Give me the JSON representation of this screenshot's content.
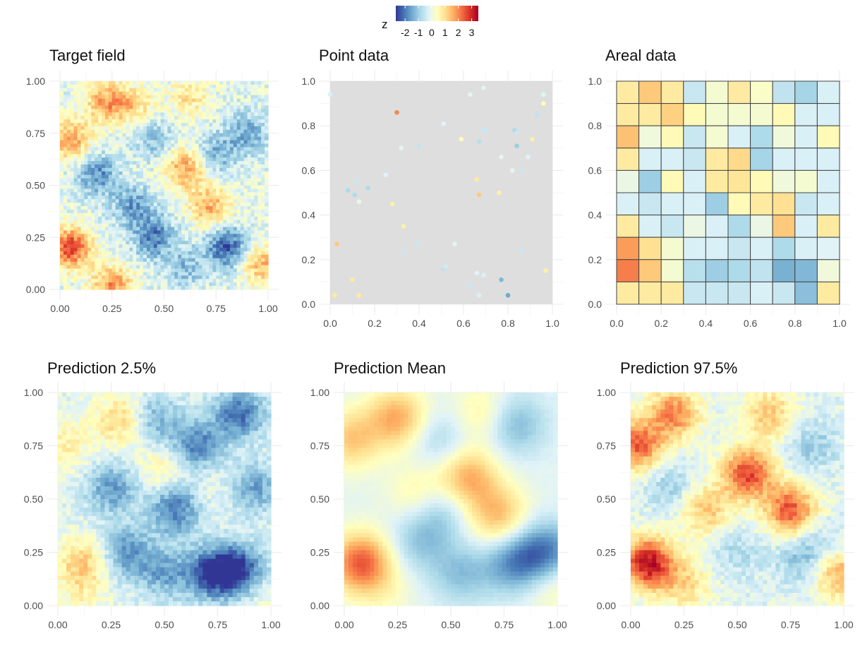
{
  "legend": {
    "title": "z",
    "tick_labels": [
      "-2",
      "-1",
      "0",
      "1",
      "2",
      "3"
    ],
    "tick_values": [
      -2,
      -1,
      0,
      1,
      2,
      3
    ],
    "range": [
      -2.7,
      3.5
    ],
    "palette": [
      "#313695",
      "#4575b4",
      "#74add1",
      "#abd9e9",
      "#e0f3f8",
      "#ffffbf",
      "#fee090",
      "#fdae61",
      "#f46d43",
      "#d73027",
      "#a50026"
    ]
  },
  "chart_data": [
    {
      "type": "heatmap",
      "title": "Target field",
      "xlim": [
        0,
        1
      ],
      "ylim": [
        0,
        1
      ],
      "x_ticks": [
        "0.00",
        "0.25",
        "0.50",
        "0.75",
        "1.00"
      ],
      "y_ticks": [
        "0.00",
        "0.25",
        "0.50",
        "0.75",
        "1.00"
      ],
      "grid": true,
      "hotspots": [
        {
          "x": 0.05,
          "y": 0.2,
          "z": 2.8
        },
        {
          "x": 0.05,
          "y": 0.72,
          "z": 1.9
        },
        {
          "x": 0.22,
          "y": 0.9,
          "z": 1.8
        },
        {
          "x": 0.35,
          "y": 0.88,
          "z": 1.2
        },
        {
          "x": 0.6,
          "y": 0.58,
          "z": 1.9
        },
        {
          "x": 0.72,
          "y": 0.4,
          "z": 1.7
        },
        {
          "x": 0.62,
          "y": 0.92,
          "z": 1.0
        },
        {
          "x": 0.97,
          "y": 0.12,
          "z": 1.6
        },
        {
          "x": 0.25,
          "y": 0.02,
          "z": 2.0
        },
        {
          "x": 0.18,
          "y": 0.55,
          "z": -1.6
        },
        {
          "x": 0.35,
          "y": 0.4,
          "z": -1.4
        },
        {
          "x": 0.45,
          "y": 0.25,
          "z": -1.8
        },
        {
          "x": 0.8,
          "y": 0.2,
          "z": -2.2
        },
        {
          "x": 0.75,
          "y": 0.65,
          "z": -1.2
        },
        {
          "x": 0.9,
          "y": 0.75,
          "z": -1.3
        },
        {
          "x": 0.6,
          "y": 0.1,
          "z": -1.0
        },
        {
          "x": 0.45,
          "y": 0.72,
          "z": -1.0
        }
      ]
    },
    {
      "type": "scatter",
      "title": "Point data",
      "xlim": [
        0,
        1
      ],
      "ylim": [
        0,
        1
      ],
      "x_ticks": [
        "0.0",
        "0.2",
        "0.4",
        "0.6",
        "0.8",
        "1.0"
      ],
      "y_ticks": [
        "0.0",
        "0.2",
        "0.4",
        "0.6",
        "0.8",
        "1.0"
      ],
      "grid": true,
      "points": [
        {
          "x": 0.0,
          "y": 0.94,
          "z": -0.3
        },
        {
          "x": 0.3,
          "y": 0.86,
          "z": 2.0
        },
        {
          "x": 0.63,
          "y": 0.94,
          "z": -0.1
        },
        {
          "x": 0.69,
          "y": 0.97,
          "z": -0.2
        },
        {
          "x": 0.96,
          "y": 0.94,
          "z": -0.2
        },
        {
          "x": 0.96,
          "y": 0.9,
          "z": 0.5
        },
        {
          "x": 0.93,
          "y": 0.85,
          "z": -0.6
        },
        {
          "x": 0.51,
          "y": 0.81,
          "z": -0.2
        },
        {
          "x": 0.59,
          "y": 0.74,
          "z": 0.5
        },
        {
          "x": 0.4,
          "y": 0.71,
          "z": -0.6
        },
        {
          "x": 0.32,
          "y": 0.7,
          "z": -0.1
        },
        {
          "x": 0.67,
          "y": 0.73,
          "z": -0.7
        },
        {
          "x": 0.69,
          "y": 0.78,
          "z": -0.5
        },
        {
          "x": 0.7,
          "y": 0.78,
          "z": -0.5
        },
        {
          "x": 0.83,
          "y": 0.78,
          "z": -0.8
        },
        {
          "x": 0.84,
          "y": 0.77,
          "z": -0.5
        },
        {
          "x": 0.84,
          "y": 0.71,
          "z": -1.0
        },
        {
          "x": 0.91,
          "y": 0.74,
          "z": 0.7
        },
        {
          "x": 0.89,
          "y": 0.66,
          "z": -0.2
        },
        {
          "x": 0.77,
          "y": 0.66,
          "z": -0.1
        },
        {
          "x": 0.82,
          "y": 0.6,
          "z": -0.1
        },
        {
          "x": 0.86,
          "y": 0.6,
          "z": -0.5
        },
        {
          "x": 0.25,
          "y": 0.58,
          "z": -0.2
        },
        {
          "x": 0.66,
          "y": 0.56,
          "z": 0.8
        },
        {
          "x": 0.12,
          "y": 0.55,
          "z": -0.5
        },
        {
          "x": 0.17,
          "y": 0.52,
          "z": -0.8
        },
        {
          "x": 0.08,
          "y": 0.51,
          "z": -0.8
        },
        {
          "x": 0.11,
          "y": 0.49,
          "z": -0.8
        },
        {
          "x": 0.13,
          "y": 0.46,
          "z": 0.0
        },
        {
          "x": 0.28,
          "y": 0.45,
          "z": 0.7
        },
        {
          "x": 0.67,
          "y": 0.49,
          "z": 1.3
        },
        {
          "x": 0.76,
          "y": 0.5,
          "z": 0.7
        },
        {
          "x": 0.33,
          "y": 0.35,
          "z": 0.7
        },
        {
          "x": 0.03,
          "y": 0.27,
          "z": 1.3
        },
        {
          "x": 0.39,
          "y": 0.27,
          "z": -0.5
        },
        {
          "x": 0.33,
          "y": 0.24,
          "z": -0.5
        },
        {
          "x": 0.56,
          "y": 0.27,
          "z": -0.1
        },
        {
          "x": 0.86,
          "y": 0.24,
          "z": -0.5
        },
        {
          "x": 0.51,
          "y": 0.16,
          "z": -0.6
        },
        {
          "x": 0.52,
          "y": 0.17,
          "z": -0.4
        },
        {
          "x": 0.66,
          "y": 0.14,
          "z": -0.2
        },
        {
          "x": 0.69,
          "y": 0.13,
          "z": -0.3
        },
        {
          "x": 0.97,
          "y": 0.15,
          "z": 0.7
        },
        {
          "x": 0.1,
          "y": 0.11,
          "z": 0.8
        },
        {
          "x": 0.77,
          "y": 0.11,
          "z": -1.3
        },
        {
          "x": 0.63,
          "y": 0.08,
          "z": -0.5
        },
        {
          "x": 0.02,
          "y": 0.04,
          "z": 0.8
        },
        {
          "x": 0.13,
          "y": 0.04,
          "z": 0.8
        },
        {
          "x": 0.67,
          "y": 0.04,
          "z": -0.3
        },
        {
          "x": 0.8,
          "y": 0.04,
          "z": -1.5
        }
      ]
    },
    {
      "type": "heatmap",
      "title": "Areal data",
      "xlim": [
        0,
        1
      ],
      "ylim": [
        0,
        1
      ],
      "x_ticks": [
        "0.0",
        "0.2",
        "0.4",
        "0.6",
        "0.8",
        "1.0"
      ],
      "y_ticks": [
        "0.0",
        "0.2",
        "0.4",
        "0.6",
        "0.8",
        "1.0"
      ],
      "grid": true,
      "cells_top_to_bottom": [
        [
          0.8,
          1.3,
          0.8,
          -0.5,
          0.2,
          0.8,
          0.3,
          -0.6,
          -0.9,
          -0.3
        ],
        [
          0.8,
          0.8,
          1.2,
          0.5,
          0.2,
          0.2,
          0.2,
          0.5,
          -0.3,
          -0.3
        ],
        [
          1.4,
          0.1,
          0.5,
          -0.5,
          0.2,
          -0.3,
          -0.8,
          0.1,
          -0.3,
          0.5
        ],
        [
          0.8,
          -0.3,
          -0.3,
          -0.5,
          0.8,
          1.1,
          -0.9,
          -0.3,
          -0.3,
          -0.3
        ],
        [
          0.0,
          -1.0,
          0.5,
          -0.3,
          0.8,
          0.9,
          0.5,
          0.1,
          0.2,
          -0.3
        ],
        [
          -0.3,
          -0.5,
          -0.3,
          -0.3,
          -1.0,
          0.5,
          0.8,
          1.0,
          -0.5,
          -0.3
        ],
        [
          0.8,
          -0.3,
          -0.5,
          0.0,
          -0.3,
          -0.8,
          0.0,
          1.3,
          -0.3,
          0.8
        ],
        [
          1.8,
          1.0,
          0.2,
          -0.3,
          -0.3,
          -0.5,
          -0.3,
          -0.8,
          -0.3,
          -0.2
        ],
        [
          2.1,
          1.3,
          0.2,
          -0.7,
          -1.0,
          -0.8,
          -0.6,
          -1.4,
          -1.3,
          0.1
        ],
        [
          0.8,
          0.8,
          0.8,
          -0.5,
          -0.5,
          -0.5,
          -0.3,
          -0.5,
          -1.2,
          0.8
        ]
      ]
    },
    {
      "type": "heatmap",
      "title": "Prediction 2.5%",
      "xlim": [
        0,
        1
      ],
      "ylim": [
        0,
        1
      ],
      "x_ticks": [
        "0.00",
        "0.25",
        "0.50",
        "0.75",
        "1.00"
      ],
      "y_ticks": [
        "0.00",
        "0.25",
        "0.50",
        "0.75",
        "1.00"
      ],
      "grid": true,
      "hotspots": [
        {
          "x": 0.12,
          "y": 0.2,
          "z": 1.4
        },
        {
          "x": 0.3,
          "y": 0.87,
          "z": 1.4
        },
        {
          "x": 0.5,
          "y": 0.65,
          "z": 0.8
        },
        {
          "x": 0.05,
          "y": 0.75,
          "z": 0.8
        },
        {
          "x": 0.74,
          "y": 0.55,
          "z": 0.3
        },
        {
          "x": 0.98,
          "y": 0.02,
          "z": 0.4
        },
        {
          "x": 0.1,
          "y": 0.05,
          "z": 0.5
        },
        {
          "x": 0.55,
          "y": 0.45,
          "z": -1.9
        },
        {
          "x": 0.72,
          "y": 0.15,
          "z": -2.3
        },
        {
          "x": 0.85,
          "y": 0.17,
          "z": -2.3
        },
        {
          "x": 0.32,
          "y": 0.25,
          "z": -1.6
        },
        {
          "x": 0.25,
          "y": 0.55,
          "z": -1.5
        },
        {
          "x": 0.65,
          "y": 0.75,
          "z": -1.8
        },
        {
          "x": 0.85,
          "y": 0.9,
          "z": -2.0
        },
        {
          "x": 0.92,
          "y": 0.55,
          "z": -1.4
        },
        {
          "x": 0.45,
          "y": 0.87,
          "z": -1.3
        },
        {
          "x": 0.5,
          "y": 0.15,
          "z": -1.3
        }
      ]
    },
    {
      "type": "heatmap",
      "title": "Prediction Mean",
      "xlim": [
        0,
        1
      ],
      "ylim": [
        0,
        1
      ],
      "x_ticks": [
        "0.00",
        "0.25",
        "0.50",
        "0.75",
        "1.00"
      ],
      "y_ticks": [
        "0.00",
        "0.25",
        "0.50",
        "0.75",
        "1.00"
      ],
      "grid": true,
      "hotspots": [
        {
          "x": 0.08,
          "y": 0.2,
          "z": 2.6
        },
        {
          "x": 0.25,
          "y": 0.88,
          "z": 1.8
        },
        {
          "x": 0.03,
          "y": 0.78,
          "z": 1.4
        },
        {
          "x": 0.58,
          "y": 0.6,
          "z": 1.8
        },
        {
          "x": 0.72,
          "y": 0.42,
          "z": 1.6
        },
        {
          "x": 0.35,
          "y": 0.52,
          "z": 0.9
        },
        {
          "x": 0.98,
          "y": 0.1,
          "z": 0.8
        },
        {
          "x": 0.65,
          "y": 0.9,
          "z": 0.9
        },
        {
          "x": 0.2,
          "y": 0.05,
          "z": 0.4
        },
        {
          "x": 0.8,
          "y": 0.2,
          "z": -1.6
        },
        {
          "x": 0.95,
          "y": 0.25,
          "z": -1.8
        },
        {
          "x": 0.45,
          "y": 0.45,
          "z": -1.0
        },
        {
          "x": 0.35,
          "y": 0.3,
          "z": -0.9
        },
        {
          "x": 0.8,
          "y": 0.85,
          "z": -1.2
        },
        {
          "x": 0.45,
          "y": 0.78,
          "z": -0.8
        },
        {
          "x": 0.55,
          "y": 0.15,
          "z": -1.0
        }
      ]
    },
    {
      "type": "heatmap",
      "title": "Prediction 97.5%",
      "xlim": [
        0,
        1
      ],
      "ylim": [
        0,
        1
      ],
      "x_ticks": [
        "0.00",
        "0.25",
        "0.50",
        "0.75",
        "1.00"
      ],
      "y_ticks": [
        "0.00",
        "0.25",
        "0.50",
        "0.75",
        "1.00"
      ],
      "grid": true,
      "hotspots": [
        {
          "x": 0.08,
          "y": 0.2,
          "z": 3.4
        },
        {
          "x": 0.03,
          "y": 0.75,
          "z": 2.5
        },
        {
          "x": 0.2,
          "y": 0.9,
          "z": 2.2
        },
        {
          "x": 0.55,
          "y": 0.62,
          "z": 2.8
        },
        {
          "x": 0.75,
          "y": 0.45,
          "z": 2.6
        },
        {
          "x": 0.35,
          "y": 0.45,
          "z": 1.5
        },
        {
          "x": 0.65,
          "y": 0.9,
          "z": 1.5
        },
        {
          "x": 0.98,
          "y": 0.15,
          "z": 1.8
        },
        {
          "x": 0.25,
          "y": 0.1,
          "z": 1.2
        },
        {
          "x": 0.18,
          "y": 0.55,
          "z": -0.8
        },
        {
          "x": 0.85,
          "y": 0.75,
          "z": -0.9
        },
        {
          "x": 0.8,
          "y": 0.22,
          "z": -1.0
        },
        {
          "x": 0.5,
          "y": 0.25,
          "z": -0.6
        },
        {
          "x": 0.92,
          "y": 0.3,
          "z": -0.5
        }
      ]
    }
  ]
}
